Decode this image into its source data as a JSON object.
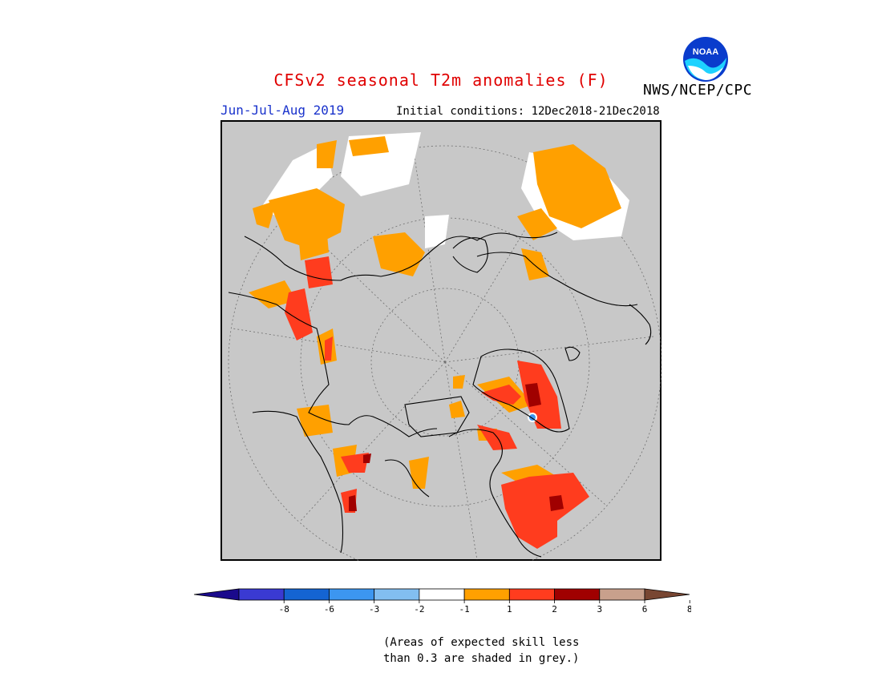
{
  "title": "CFSv2 seasonal T2m anomalies (F)",
  "organization": "NWS/NCEP/CPC",
  "logo_text": "NOAA",
  "season": "Jun-Jul-Aug 2019",
  "initial_conditions": "Initial conditions: 12Dec2018-21Dec2018",
  "note_lines": [
    "(Areas of expected skill less",
    "than 0.3 are shaded in grey.)"
  ],
  "colors": {
    "title": "#e00000",
    "season": "#1a33cc",
    "ocean_low_skill": "#c8c8c8",
    "frame": "#000000"
  },
  "legend": {
    "tick_labels": [
      "-8",
      "-6",
      "-3",
      "-2",
      "-1",
      "1",
      "2",
      "3",
      "6",
      "8"
    ],
    "bins": [
      {
        "range": "< -8",
        "color": "#1a0a8c"
      },
      {
        "range": "-8 to -6",
        "color": "#3a3ad2"
      },
      {
        "range": "-6 to -3",
        "color": "#1464d2"
      },
      {
        "range": "-3 to -2",
        "color": "#3c96f0"
      },
      {
        "range": "-2 to -1",
        "color": "#82bef0"
      },
      {
        "range": "-1 to 1",
        "color": "#ffffff"
      },
      {
        "range": "1 to 2",
        "color": "#ffa000"
      },
      {
        "range": "2 to 3",
        "color": "#ff3c1e"
      },
      {
        "range": "3 to 6",
        "color": "#a00000"
      },
      {
        "range": "6 to 8",
        "color": "#c8a08c"
      },
      {
        "range": "> 8",
        "color": "#784632"
      }
    ]
  }
}
